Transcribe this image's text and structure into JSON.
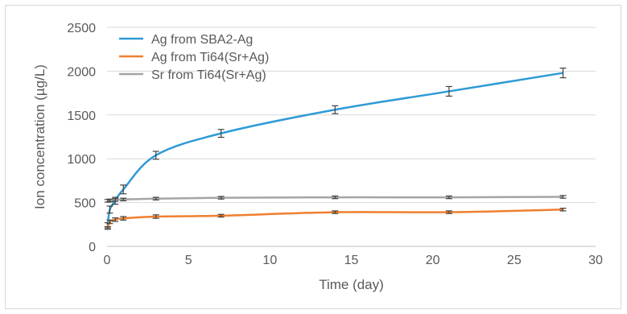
{
  "chart_data": {
    "type": "line",
    "xlabel": "Time (day)",
    "ylabel": "Ion concentration (µg/L)",
    "xlim": [
      0,
      30
    ],
    "ylim": [
      0,
      2500
    ],
    "xticks": [
      0,
      5,
      10,
      15,
      20,
      25,
      30
    ],
    "yticks": [
      0,
      500,
      1000,
      1500,
      2000,
      2500
    ],
    "grid": "horizontal",
    "legend_position": "top-left",
    "series": [
      {
        "name": "Ag from SBA2-Ag",
        "color": "#2e9ad6",
        "x": [
          0.04,
          0.17,
          0.5,
          1,
          3,
          7,
          14,
          21,
          28
        ],
        "y": [
          240,
          420,
          520,
          650,
          1040,
          1290,
          1560,
          1770,
          1980
        ],
        "err": [
          30,
          40,
          40,
          50,
          45,
          45,
          45,
          55,
          55
        ]
      },
      {
        "name": "Ag from Ti64(Sr+Ag)",
        "color": "#f07f2e",
        "x": [
          0.04,
          0.17,
          0.5,
          1,
          3,
          7,
          14,
          21,
          28
        ],
        "y": [
          210,
          280,
          305,
          320,
          340,
          350,
          390,
          390,
          420
        ],
        "err": [
          15,
          20,
          20,
          20,
          20,
          15,
          15,
          15,
          15
        ]
      },
      {
        "name": "Sr from Ti64(Sr+Ag)",
        "color": "#a5a5a5",
        "x": [
          0.04,
          0.17,
          0.5,
          1,
          3,
          7,
          14,
          21,
          28
        ],
        "y": [
          520,
          525,
          530,
          535,
          545,
          555,
          560,
          560,
          565
        ],
        "err": [
          15,
          15,
          15,
          15,
          15,
          15,
          15,
          15,
          15
        ]
      }
    ]
  }
}
